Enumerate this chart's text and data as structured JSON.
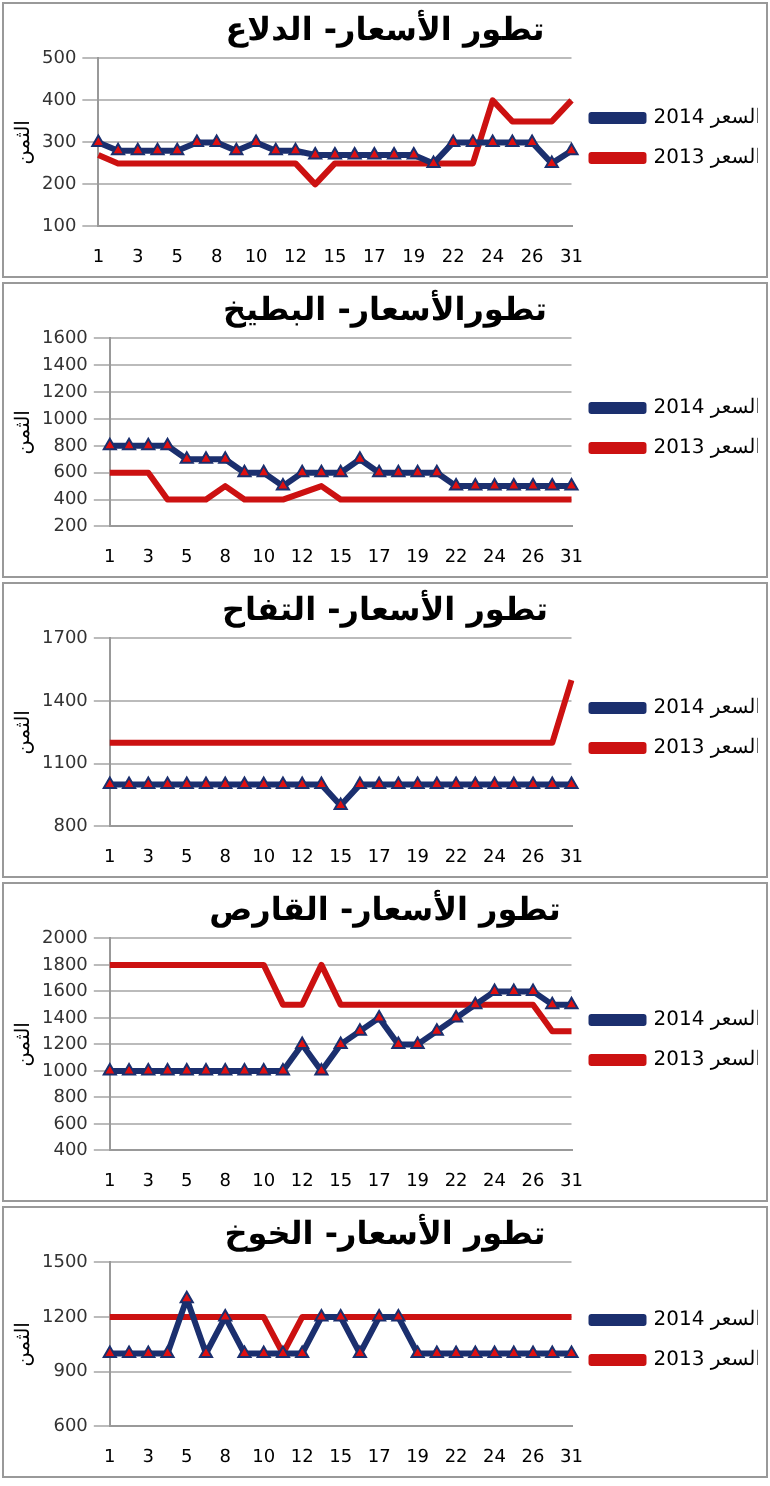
{
  "chart_data": [
    {
      "type": "line",
      "title": "تطور الأسعار- الدلاع",
      "ylabel": "الثمن",
      "categories": [
        "1",
        null,
        "3",
        null,
        "5",
        null,
        "8",
        null,
        "10",
        null,
        "12",
        null,
        "15",
        null,
        "17",
        null,
        "19",
        null,
        "22",
        null,
        "24",
        null,
        "26",
        null,
        "31"
      ],
      "ylim": [
        100,
        500
      ],
      "yticks": [
        100,
        200,
        300,
        400,
        500
      ],
      "grid": "y",
      "legend": "right",
      "series": [
        {
          "name": "السعر 2014",
          "color": "#1b2f6e",
          "marker": "triangle",
          "values": [
            300,
            280,
            280,
            280,
            280,
            300,
            300,
            280,
            300,
            280,
            280,
            270,
            270,
            270,
            270,
            270,
            270,
            250,
            300,
            300,
            300,
            300,
            300,
            250,
            280
          ]
        },
        {
          "name": "السعر 2013",
          "color": "#cc1111",
          "marker": "none",
          "values": [
            270,
            250,
            250,
            250,
            250,
            250,
            250,
            250,
            250,
            250,
            250,
            200,
            250,
            250,
            250,
            250,
            250,
            250,
            250,
            250,
            400,
            350,
            350,
            350,
            400
          ]
        }
      ]
    },
    {
      "type": "line",
      "title": "تطورالأسعار- البطيخ",
      "ylabel": "الثمن",
      "categories": [
        "1",
        null,
        "3",
        null,
        "5",
        null,
        "8",
        null,
        "10",
        null,
        "12",
        null,
        "15",
        null,
        "17",
        null,
        "19",
        null,
        "22",
        null,
        "24",
        null,
        "26",
        null,
        "31"
      ],
      "ylim": [
        200,
        1600
      ],
      "yticks": [
        200,
        400,
        600,
        800,
        1000,
        1200,
        1400,
        1600
      ],
      "grid": "y",
      "legend": "right",
      "series": [
        {
          "name": "السعر 2014",
          "color": "#1b2f6e",
          "marker": "triangle",
          "values": [
            800,
            800,
            800,
            800,
            700,
            700,
            700,
            600,
            600,
            500,
            600,
            600,
            600,
            700,
            600,
            600,
            600,
            600,
            500,
            500,
            500,
            500,
            500,
            500,
            500
          ]
        },
        {
          "name": "السعر 2013",
          "color": "#cc1111",
          "marker": "none",
          "values": [
            600,
            600,
            600,
            400,
            400,
            400,
            500,
            400,
            400,
            400,
            450,
            500,
            400,
            400,
            400,
            400,
            400,
            400,
            400,
            400,
            400,
            400,
            400,
            400,
            400
          ]
        }
      ]
    },
    {
      "type": "line",
      "title": "تطور الأسعار- التفاح",
      "ylabel": "الثمن",
      "categories": [
        "1",
        null,
        "3",
        null,
        "5",
        null,
        "8",
        null,
        "10",
        null,
        "12",
        null,
        "15",
        null,
        "17",
        null,
        "19",
        null,
        "22",
        null,
        "24",
        null,
        "26",
        null,
        "31"
      ],
      "ylim": [
        800,
        1700
      ],
      "yticks": [
        800,
        1100,
        1400,
        1700
      ],
      "grid": "y",
      "legend": "right",
      "series": [
        {
          "name": "السعر 2014",
          "color": "#1b2f6e",
          "marker": "triangle",
          "values": [
            1000,
            1000,
            1000,
            1000,
            1000,
            1000,
            1000,
            1000,
            1000,
            1000,
            1000,
            1000,
            900,
            1000,
            1000,
            1000,
            1000,
            1000,
            1000,
            1000,
            1000,
            1000,
            1000,
            1000,
            1000
          ]
        },
        {
          "name": "السعر 2013",
          "color": "#cc1111",
          "marker": "none",
          "values": [
            1200,
            1200,
            1200,
            1200,
            1200,
            1200,
            1200,
            1200,
            1200,
            1200,
            1200,
            1200,
            1200,
            1200,
            1200,
            1200,
            1200,
            1200,
            1200,
            1200,
            1200,
            1200,
            1200,
            1200,
            1500
          ]
        }
      ]
    },
    {
      "type": "line",
      "title": "تطور الأسعار- القارص",
      "ylabel": "الثمن",
      "categories": [
        "1",
        null,
        "3",
        null,
        "5",
        null,
        "8",
        null,
        "10",
        null,
        "12",
        null,
        "15",
        null,
        "17",
        null,
        "19",
        null,
        "22",
        null,
        "24",
        null,
        "26",
        null,
        "31"
      ],
      "ylim": [
        400,
        2000
      ],
      "yticks": [
        400,
        600,
        800,
        1000,
        1200,
        1400,
        1600,
        1800,
        2000
      ],
      "grid": "y",
      "legend": "right",
      "series": [
        {
          "name": "السعر 2014",
          "color": "#1b2f6e",
          "marker": "triangle",
          "values": [
            1000,
            1000,
            1000,
            1000,
            1000,
            1000,
            1000,
            1000,
            1000,
            1000,
            1200,
            1000,
            1200,
            1300,
            1400,
            1200,
            1200,
            1300,
            1400,
            1500,
            1600,
            1600,
            1600,
            1500,
            1500
          ]
        },
        {
          "name": "السعر 2013",
          "color": "#cc1111",
          "marker": "none",
          "values": [
            1800,
            1800,
            1800,
            1800,
            1800,
            1800,
            1800,
            1800,
            1800,
            1500,
            1500,
            1800,
            1500,
            1500,
            1500,
            1500,
            1500,
            1500,
            1500,
            1500,
            1500,
            1500,
            1500,
            1300,
            1300
          ]
        }
      ]
    },
    {
      "type": "line",
      "title": "تطور الأسعار- الخوخ",
      "ylabel": "الثمن",
      "categories": [
        "1",
        null,
        "3",
        null,
        "5",
        null,
        "8",
        null,
        "10",
        null,
        "12",
        null,
        "15",
        null,
        "17",
        null,
        "19",
        null,
        "22",
        null,
        "24",
        null,
        "26",
        null,
        "31"
      ],
      "ylim": [
        600,
        1500
      ],
      "yticks": [
        600,
        900,
        1200,
        1500
      ],
      "grid": "y",
      "legend": "right",
      "series": [
        {
          "name": "السعر 2014",
          "color": "#1b2f6e",
          "marker": "triangle",
          "values": [
            1000,
            1000,
            1000,
            1000,
            1300,
            1000,
            1200,
            1000,
            1000,
            1000,
            1000,
            1200,
            1200,
            1000,
            1200,
            1200,
            1000,
            1000,
            1000,
            1000,
            1000,
            1000,
            1000,
            1000,
            1000
          ]
        },
        {
          "name": "السعر 2013",
          "color": "#cc1111",
          "marker": "none",
          "values": [
            1200,
            1200,
            1200,
            1200,
            1200,
            1200,
            1200,
            1200,
            1200,
            1000,
            1200,
            1200,
            1200,
            1200,
            1200,
            1200,
            1200,
            1200,
            1200,
            1200,
            1200,
            1200,
            1200,
            1200,
            1200
          ]
        }
      ]
    }
  ]
}
